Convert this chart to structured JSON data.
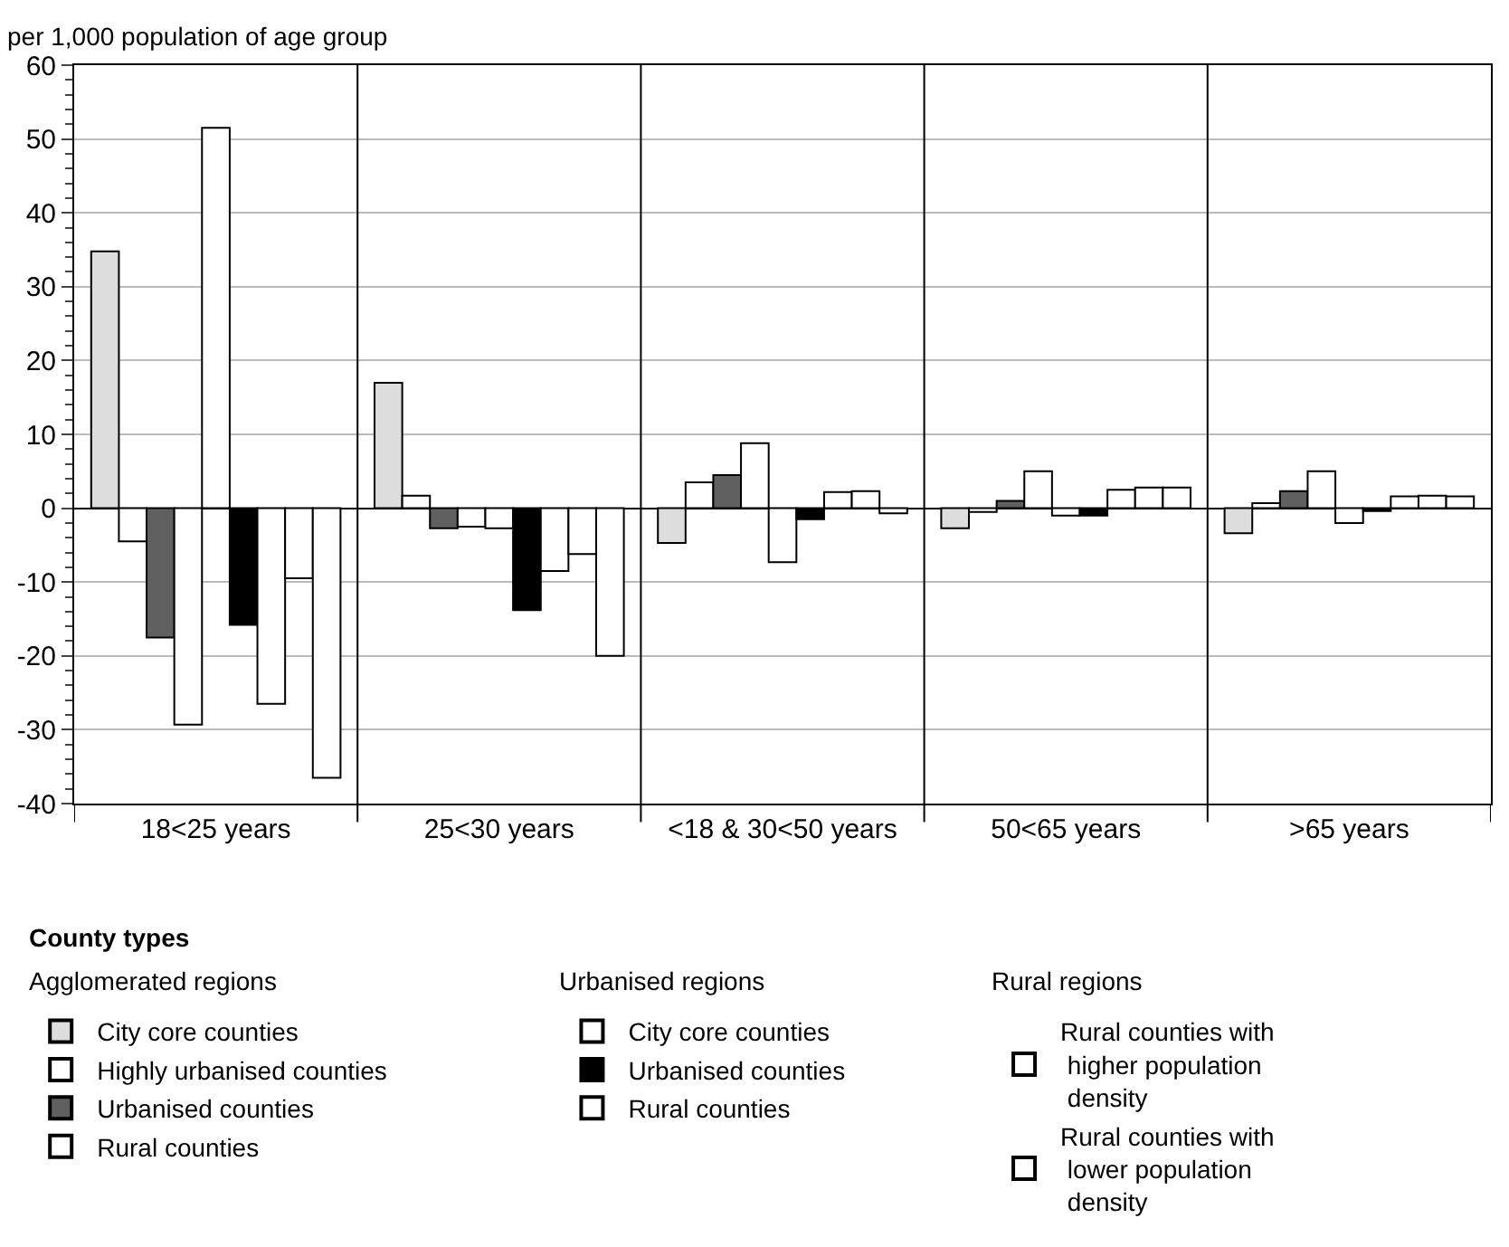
{
  "chart_data": {
    "type": "bar",
    "ylabel": "per 1,000 population of age group",
    "legend_title": "County types",
    "annotations": [
      "Agglomerated regions",
      "Urbanised regions",
      "Rural regions"
    ],
    "categories": [
      "18<25 years",
      "25<30 years",
      "<18 & 30<50 years",
      "50<65 years",
      ">65 years"
    ],
    "series": [
      {
        "name": "City core counties",
        "color": "#dddddd",
        "values": [
          34.8,
          17,
          -4.7,
          -2.7,
          -3.4
        ]
      },
      {
        "name": "Highly urbanised counties",
        "color": "#ffffff",
        "values": [
          -4.5,
          1.7,
          3.5,
          -0.5,
          0.7
        ]
      },
      {
        "name": "Urbanised counties",
        "color": "#606060",
        "values": [
          -17.5,
          -2.7,
          4.5,
          1,
          2.3
        ]
      },
      {
        "name": "Rural counties",
        "color": "#ffffff",
        "values": [
          -29.3,
          -2.5,
          8.8,
          5,
          5
        ]
      },
      {
        "name": "City core counties",
        "color": "#ffffff",
        "values": [
          51.5,
          -2.7,
          -7.3,
          -1,
          -2
        ]
      },
      {
        "name": "Urbanised counties",
        "color": "#000000",
        "values": [
          -15.8,
          -13.8,
          -1.5,
          -1,
          -0.4
        ]
      },
      {
        "name": "Rural counties",
        "color": "#ffffff",
        "values": [
          -26.5,
          -8.5,
          2.2,
          2.5,
          1.6
        ]
      },
      {
        "name": "Rural counties with higher population density",
        "color": "#ffffff",
        "values": [
          -9.5,
          -6.2,
          2.3,
          2.8,
          1.7
        ]
      },
      {
        "name": "Rural counties with lower population density",
        "color": "#ffffff",
        "values": [
          -36.5,
          -20,
          -0.7,
          2.8,
          1.6
        ]
      }
    ],
    "ylim": [
      -40,
      60
    ],
    "yticks": [
      -40,
      -30,
      -20,
      -10,
      0,
      10,
      20,
      30,
      40,
      50,
      60
    ],
    "grid": true,
    "legend": "bottom"
  }
}
